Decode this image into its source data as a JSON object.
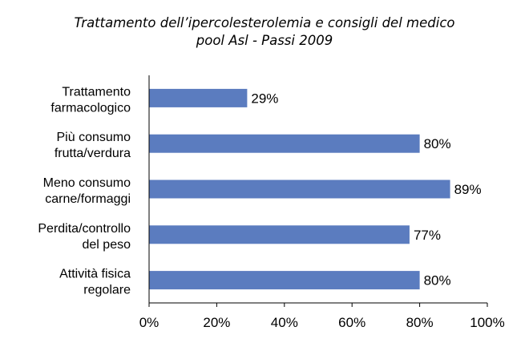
{
  "chart_data": {
    "type": "bar",
    "orientation": "horizontal",
    "title": "Trattamento dell’ipercolesterolemia e consigli del medico",
    "subtitle": "pool Asl - Passi 2009",
    "categories": [
      [
        "Trattamento",
        "farmacologico"
      ],
      [
        "Più consumo",
        "frutta/verdura"
      ],
      [
        "Meno consumo",
        "carne/formaggi"
      ],
      [
        "Perdita/controllo",
        "del peso"
      ],
      [
        "Attività fisica",
        "regolare"
      ]
    ],
    "values": [
      29,
      80,
      89,
      77,
      80
    ],
    "value_labels": [
      "29%",
      "80%",
      "89%",
      "77%",
      "80%"
    ],
    "xlim": [
      0,
      100
    ],
    "xticks": [
      0,
      20,
      40,
      60,
      80,
      100
    ],
    "xtick_labels": [
      "0%",
      "20%",
      "40%",
      "60%",
      "80%",
      "100%"
    ],
    "bar_color": "#5b7cbf",
    "grid": false,
    "legend": false
  }
}
